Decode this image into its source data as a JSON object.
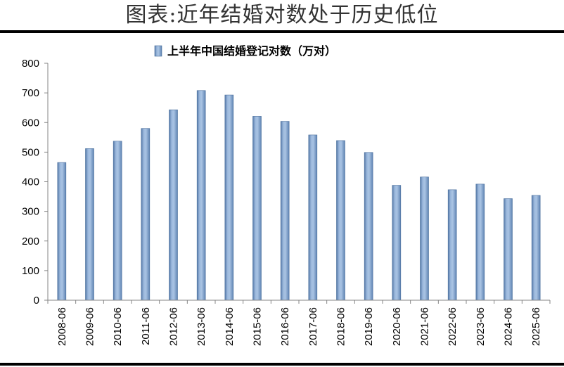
{
  "page": {
    "title": "图表:近年结婚对数处于历史低位"
  },
  "chart_data": {
    "type": "bar",
    "title": "",
    "xlabel": "",
    "ylabel": "",
    "legend_position": "top-center",
    "grid": false,
    "bar_color": "#7B9FCB",
    "ylim": [
      0,
      800
    ],
    "yticks": [
      0,
      100,
      200,
      300,
      400,
      500,
      600,
      700,
      800
    ],
    "categories": [
      "2008-06",
      "2009-06",
      "2010-06",
      "2011-06",
      "2012-06",
      "2013-06",
      "2014-06",
      "2015-06",
      "2016-06",
      "2017-06",
      "2018-06",
      "2019-06",
      "2020-06",
      "2021-06",
      "2022-06",
      "2023-06",
      "2024-06",
      "2025-06"
    ],
    "series": [
      {
        "name": "上半年中国结婚登记对数（万对）",
        "values": [
          465,
          512,
          537,
          580,
          643,
          708,
          693,
          621,
          604,
          558,
          539,
          499,
          388,
          416,
          373,
          392,
          343,
          354
        ]
      }
    ]
  }
}
